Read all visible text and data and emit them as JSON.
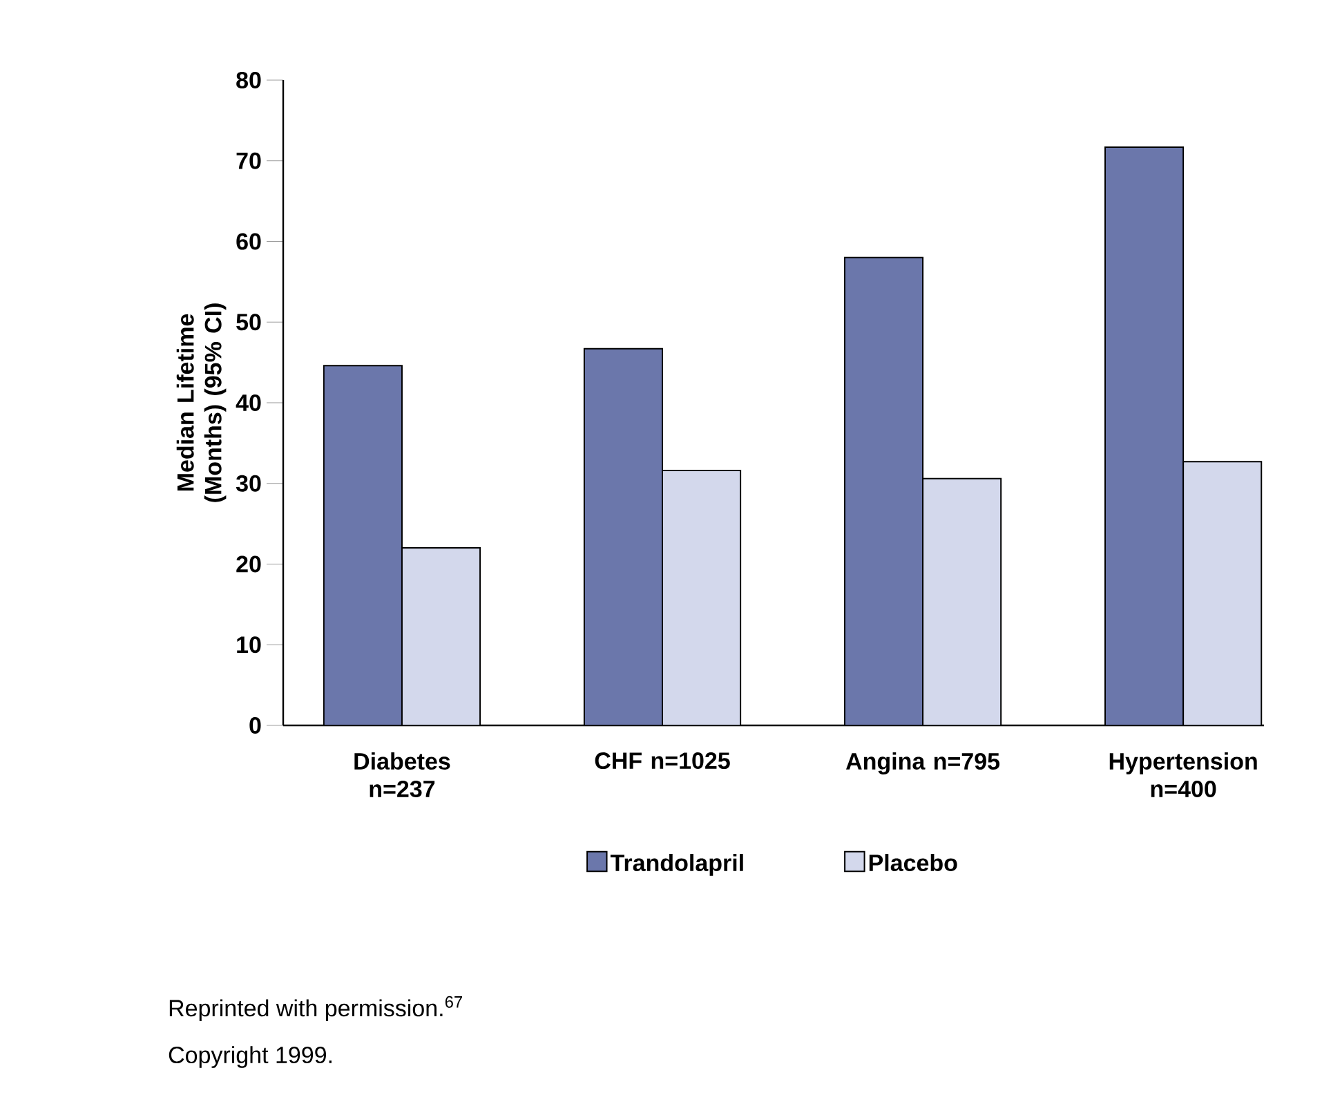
{
  "chart_data": {
    "type": "bar",
    "ylabel": "Median Lifetime (Months) (95% CI)",
    "categories": [
      "Diabetes n=237",
      "CHF n=1025",
      "Angina n=795",
      "Hypertension n=400"
    ],
    "series": [
      {
        "name": "Trandolapril",
        "color": "#6b77ab",
        "values": [
          44.6,
          46.7,
          58,
          71.7
        ]
      },
      {
        "name": "Placebo",
        "color": "#d3d8ec",
        "values": [
          22,
          31.6,
          30.6,
          32.7
        ]
      }
    ],
    "ylim": [
      0,
      80
    ],
    "yticks": [
      0,
      10,
      20,
      30,
      40,
      50,
      60,
      70,
      80
    ],
    "legend": "bottom",
    "grid": false,
    "annotations": [
      "Reprinted with permission.$^{67}$",
      "Copyright 1999."
    ]
  }
}
